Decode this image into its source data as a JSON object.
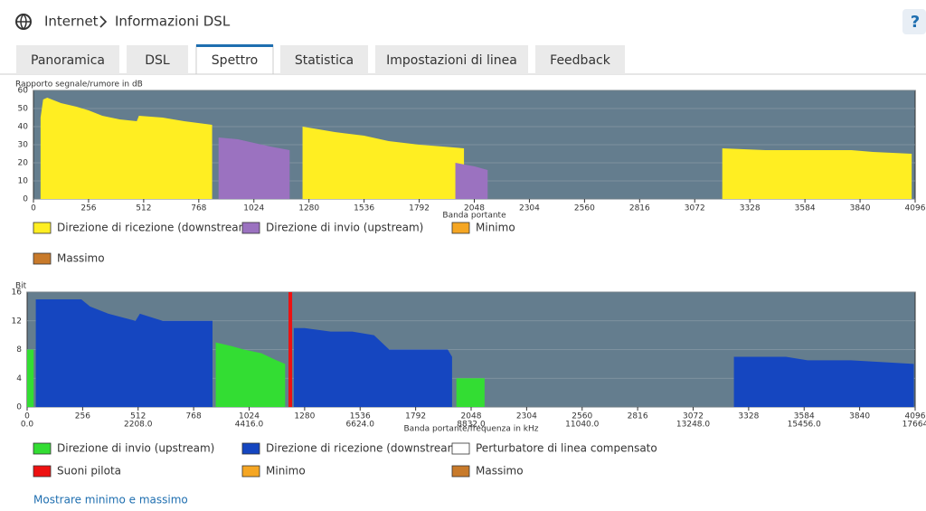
{
  "header": {
    "breadcrumb": [
      "Internet",
      "Informazioni DSL"
    ],
    "help": "?"
  },
  "tabs": [
    "Panoramica",
    "DSL",
    "Spettro",
    "Statistica",
    "Impostazioni di linea",
    "Feedback"
  ],
  "active_tab": 2,
  "chart_data": [
    {
      "type": "area",
      "ylabel": "Rapporto segnale/rumore in dB",
      "xlabel": "Banda portante",
      "xlim": [
        0,
        4096
      ],
      "xticks": [
        0,
        256,
        512,
        768,
        1024,
        1280,
        1536,
        1792,
        2048,
        2304,
        2560,
        2816,
        3072,
        3328,
        3584,
        3840,
        4096
      ],
      "ylim": [
        0,
        60
      ],
      "yticks": [
        0,
        10,
        20,
        30,
        40,
        50,
        60
      ],
      "grid": true,
      "series": [
        {
          "name": "Direzione di ricezione  (downstream)",
          "color": "#ffee22",
          "x": [
            33,
            45,
            64,
            128,
            200,
            256,
            320,
            400,
            480,
            490,
            600,
            700,
            830,
            null,
            1250,
            1300,
            1400,
            1536,
            1650,
            1792,
            1900,
            2000,
            null,
            3200,
            3400,
            3600,
            3800,
            3900,
            4080
          ],
          "values": [
            45,
            55,
            56,
            53,
            51,
            49,
            46,
            44,
            43,
            46,
            45,
            43,
            41,
            null,
            40,
            39,
            37,
            35,
            32,
            30,
            29,
            28,
            null,
            28,
            27,
            27,
            27,
            26,
            25
          ]
        },
        {
          "name": "Direzione di invio  (upstream)",
          "color": "#9b72c0",
          "x": [
            860,
            950,
            1024,
            1100,
            1190,
            null,
            1960,
            2050,
            2110
          ],
          "values": [
            34,
            33,
            31,
            29,
            27,
            null,
            20,
            18,
            16
          ]
        },
        {
          "name": "Minimo",
          "color": "#f5a623",
          "x": [],
          "values": []
        },
        {
          "name": "Massimo",
          "color": "#c87a2a",
          "x": [],
          "values": []
        }
      ]
    },
    {
      "type": "area",
      "ylabel": "Bit",
      "xlabel": "Banda portante/frequenza in kHz",
      "xlim": [
        0,
        4096
      ],
      "xticks": [
        0,
        256,
        512,
        768,
        1024,
        1280,
        1536,
        1792,
        2048,
        2304,
        2560,
        2816,
        3072,
        3328,
        3584,
        3840,
        4096
      ],
      "x2lim": [
        0,
        17664
      ],
      "x2ticks": [
        {
          "value": 0,
          "label": "0.0"
        },
        {
          "value": 2208,
          "label": "2208.0"
        },
        {
          "value": 4416,
          "label": "4416.0"
        },
        {
          "value": 6624,
          "label": "6624.0"
        },
        {
          "value": 8832,
          "label": "8832.0"
        },
        {
          "value": 11040,
          "label": "11040.0"
        },
        {
          "value": 13248,
          "label": "13248.0"
        },
        {
          "value": 15456,
          "label": "15456.0"
        },
        {
          "value": 17664,
          "label": "17664"
        }
      ],
      "ylim": [
        0,
        16
      ],
      "yticks": [
        0,
        4,
        8,
        12,
        16
      ],
      "grid": true,
      "series": [
        {
          "name": "Direzione di invio  (upstream)",
          "color": "#33dd33",
          "x": [
            0,
            30,
            null,
            870,
            940,
            1000,
            1080,
            1150,
            1190,
            null,
            1980,
            2110
          ],
          "values": [
            8,
            8,
            null,
            9,
            8.5,
            8,
            7.5,
            6.5,
            6,
            null,
            4,
            4
          ]
        },
        {
          "name": "Direzione di ricezione  (downstream)",
          "color": "#1546c0",
          "x": [
            40,
            250,
            290,
            375,
            500,
            520,
            625,
            825,
            855,
            null,
            1230,
            1280,
            1400,
            1500,
            1600,
            1670,
            1940,
            1960,
            null,
            3260,
            3500,
            3600,
            3800,
            4090
          ],
          "values": [
            15,
            15,
            14,
            13,
            12,
            13,
            12,
            12,
            12,
            null,
            11,
            11,
            10.5,
            10.5,
            10,
            8,
            8,
            7,
            null,
            7,
            7,
            6.5,
            6.5,
            6
          ]
        },
        {
          "name": "Perturbatore di linea compensato",
          "color": "#ffffff",
          "x": [],
          "values": []
        },
        {
          "name": "Suoni pilota",
          "color": "#ee1111",
          "type": "bar",
          "x": [
            1214
          ],
          "values": [
            16
          ]
        },
        {
          "name": "Minimo",
          "color": "#f5a623",
          "x": [],
          "values": []
        },
        {
          "name": "Massimo",
          "color": "#c87a2a",
          "x": [],
          "values": []
        }
      ]
    }
  ],
  "link": "Mostrare minimo e massimo"
}
